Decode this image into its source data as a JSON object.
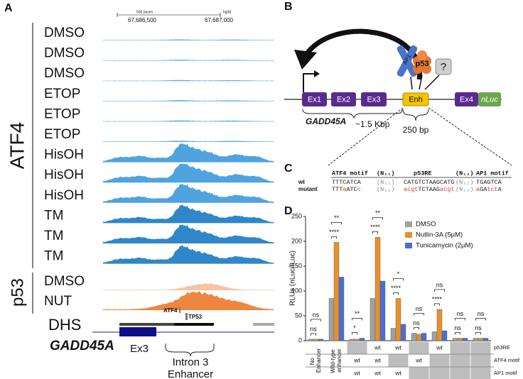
{
  "panel_a": {
    "label": "A",
    "scale": {
      "span": "500 bases",
      "assembly": "hg38",
      "start": "67,686,500",
      "end": "67,687,000"
    },
    "groups": [
      {
        "name": "ATF4",
        "tracks": [
          {
            "name": "DMSO",
            "color": "#5eaee3"
          },
          {
            "name": "DMSO",
            "color": "#5eaee3"
          },
          {
            "name": "DMSO",
            "color": "#5eaee3"
          },
          {
            "name": "ETOP",
            "color": "#5eaee3"
          },
          {
            "name": "ETOP",
            "color": "#5eaee3"
          },
          {
            "name": "ETOP",
            "color": "#5eaee3"
          },
          {
            "name": "HisOH",
            "color": "#4fa3de"
          },
          {
            "name": "HisOH",
            "color": "#4fa3de"
          },
          {
            "name": "HisOH",
            "color": "#4fa3de"
          },
          {
            "name": "TM",
            "color": "#2f86c8"
          },
          {
            "name": "TM",
            "color": "#2f86c8"
          },
          {
            "name": "TM",
            "color": "#2f86c8"
          }
        ]
      },
      {
        "name": "p53",
        "tracks": [
          {
            "name": "DMSO",
            "color": "#f7c4a2"
          },
          {
            "name": "NUT",
            "color": "#ee8540"
          }
        ]
      }
    ],
    "dhs": "DHS",
    "gene": "GADD45A",
    "exon": "Ex3",
    "motifs": [
      "ATF4",
      "TP53"
    ],
    "enhancer": [
      "Intron 3",
      "Enhancer"
    ]
  },
  "panel_b": {
    "label": "B",
    "exons": [
      "Ex1",
      "Ex2",
      "Ex3"
    ],
    "enhancer": "Enh",
    "exon4": "Ex4",
    "reporter": "nLuc",
    "factors": [
      "AP1",
      "p53",
      "?"
    ],
    "gene": "GADD45A",
    "gene_length": "~1.5 Kbp",
    "enhancer_length": "250 bp"
  },
  "panel_c": {
    "label": "C",
    "header": [
      "ATF4 motif",
      "(N₁₁)",
      "p53RE",
      "(N₁₂)",
      "AP1 motif"
    ],
    "rows": [
      {
        "name": "wt",
        "cells": [
          [
            {
              "text": "TTTCATCA"
            }
          ],
          [
            {
              "text": "(N₁₁)"
            }
          ],
          [
            {
              "text": "CATGTCTAAGCATG"
            }
          ],
          [
            {
              "text": "(N₁₂)"
            }
          ],
          [
            {
              "text": "TGAGTCA"
            }
          ]
        ]
      },
      {
        "name": "mutant",
        "cells": [
          [
            {
              "text": "TTT"
            },
            {
              "text": "a",
              "mutated": true
            },
            {
              "text": "ATC"
            },
            {
              "text": "c",
              "mutated": true
            }
          ],
          [
            {
              "text": "(N₁₁)"
            }
          ],
          [
            {
              "text": "acgt",
              "mutated": true
            },
            {
              "text": "TCTAAG"
            },
            {
              "text": "acgt",
              "mutated": true
            }
          ],
          [
            {
              "text": "(N₁₂)"
            }
          ],
          [
            {
              "text": "a",
              "mutated": true
            },
            {
              "text": "GA"
            },
            {
              "text": "tct",
              "mutated": true
            },
            {
              "text": "A"
            }
          ]
        ]
      }
    ]
  },
  "chart_data": {
    "type": "bar",
    "label": "D",
    "y_label": "RLUs (nLuc/fLuc)",
    "categories": [
      "No Enhancer",
      "Wild-type enhancer",
      null,
      null,
      null,
      null,
      null,
      null,
      null
    ],
    "series": [
      {
        "name": "DMSO",
        "color": "#a0a0a0",
        "values": [
          3,
          85,
          3,
          85,
          25,
          15,
          18,
          5,
          5
        ]
      },
      {
        "name": "Nutlin-3A (5µM)",
        "color": "#e8902c",
        "values": [
          3,
          198,
          3,
          208,
          85,
          13,
          63,
          5,
          5
        ]
      },
      {
        "name": "Tunicamycin (2µM)",
        "color": "#4a6fd0",
        "values": [
          3,
          128,
          5,
          120,
          33,
          15,
          20,
          5,
          5
        ]
      }
    ],
    "significance": [
      [
        "ns",
        "ns"
      ],
      [
        "****",
        "**"
      ],
      [
        "*",
        "**"
      ],
      [
        "****",
        "**"
      ],
      [
        "****",
        "*"
      ],
      [
        "ns",
        "ns"
      ],
      [
        "****",
        "ns"
      ],
      [
        "ns",
        "ns"
      ],
      [
        "ns",
        "ns"
      ]
    ],
    "ylim": [
      0,
      250
    ],
    "yticks": [
      0,
      50,
      100,
      150,
      200,
      250
    ],
    "constructs": {
      "rows": [
        "p53RE",
        "ATF4 motif",
        "AP1 motif"
      ],
      "cells": [
        [
          null,
          "wt",
          "wt",
          null,
          "wt",
          null,
          null
        ],
        [
          "wt",
          "wt",
          null,
          "wt",
          null,
          null,
          null
        ],
        [
          "wt",
          "wt",
          "wt",
          null,
          null,
          null,
          null
        ]
      ]
    }
  }
}
